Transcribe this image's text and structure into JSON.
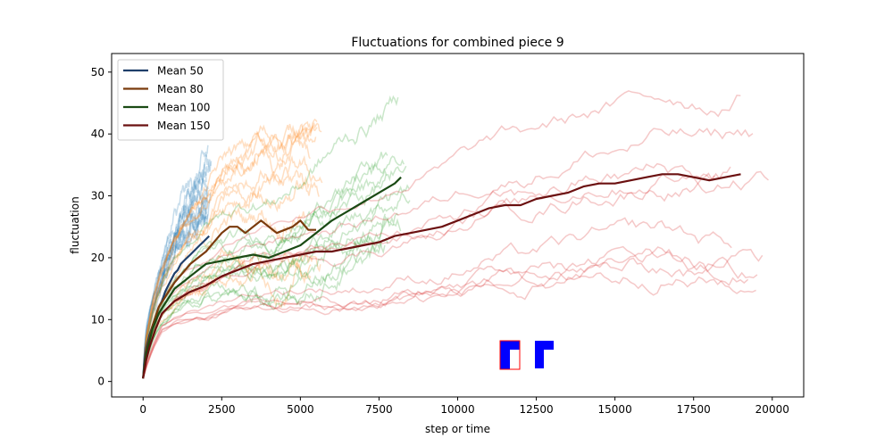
{
  "chart_data": {
    "type": "line",
    "title": "Fluctuations for combined piece 9",
    "xlabel": "step or time",
    "ylabel": "fluctuation",
    "xlim": [
      -1000,
      21000
    ],
    "ylim": [
      -2.5,
      53
    ],
    "xticks": [
      0,
      2500,
      5000,
      7500,
      10000,
      12500,
      15000,
      17500,
      20000
    ],
    "xtick_labels": [
      "0",
      "2500",
      "5000",
      "7500",
      "10000",
      "12500",
      "15000",
      "17500",
      "20000"
    ],
    "yticks": [
      0,
      10,
      20,
      30,
      40,
      50
    ],
    "ytick_labels": [
      "0",
      "10",
      "20",
      "30",
      "40",
      "50"
    ],
    "grid": false,
    "legend": "top-left",
    "series": [
      {
        "name": "Mean 50",
        "color": "#1f3f6a",
        "light_color": "#1f77b4",
        "x": [
          0,
          50,
          100,
          200,
          300,
          400,
          500,
          600,
          700,
          800,
          900,
          1000,
          1100,
          1200,
          1300,
          1400,
          1500,
          1600,
          1700,
          1800,
          1900,
          2000,
          2100
        ],
        "values": [
          0.5,
          3.5,
          5.5,
          7.5,
          9,
          10.5,
          12,
          13,
          14.5,
          15.5,
          16.5,
          17.5,
          18,
          19,
          19.5,
          20,
          20.5,
          21,
          21.5,
          22,
          22.5,
          23,
          23.5
        ],
        "runs": 12,
        "run_end_x": 2200,
        "run_end_range": [
          26,
          36
        ]
      },
      {
        "name": "Mean 80",
        "color": "#7a3a0c",
        "light_color": "#ff7f0e",
        "x": [
          0,
          100,
          300,
          500,
          750,
          1000,
          1250,
          1500,
          1750,
          2000,
          2250,
          2500,
          2750,
          3000,
          3250,
          3500,
          3750,
          4000,
          4250,
          4500,
          4750,
          5000,
          5250,
          5500
        ],
        "values": [
          0.5,
          5,
          9,
          12,
          14,
          16,
          17.5,
          19,
          20,
          21,
          22.5,
          24,
          25,
          25,
          24,
          25,
          26,
          25,
          24,
          24.5,
          25,
          26,
          24.5,
          24.5
        ],
        "runs": 12,
        "run_end_x": 5700,
        "run_end_range": [
          10,
          43
        ]
      },
      {
        "name": "Mean 100",
        "color": "#1a4a14",
        "light_color": "#2ca02c",
        "x": [
          0,
          100,
          300,
          500,
          750,
          1000,
          1250,
          1500,
          1750,
          2000,
          2500,
          3000,
          3500,
          4000,
          4500,
          5000,
          5500,
          6000,
          6500,
          7000,
          7500,
          8000,
          8200
        ],
        "values": [
          0.5,
          4.5,
          8.5,
          11,
          13,
          15,
          16,
          17,
          18,
          19,
          19.5,
          20,
          20.5,
          20,
          21,
          22,
          24,
          26,
          27.5,
          29,
          30.5,
          32,
          33
        ],
        "runs": 12,
        "run_end_x": 8500,
        "run_end_range": [
          20,
          47
        ]
      },
      {
        "name": "Mean 150",
        "color": "#6b1010",
        "light_color": "#d62728",
        "x": [
          0,
          100,
          200,
          400,
          600,
          1000,
          1500,
          2000,
          2500,
          3000,
          3500,
          4000,
          4500,
          5000,
          5500,
          6000,
          6500,
          7000,
          7500,
          8000,
          8500,
          9000,
          9500,
          10000,
          10500,
          11000,
          11500,
          12000,
          12500,
          13000,
          13500,
          14000,
          14500,
          15000,
          15500,
          16000,
          16500,
          17000,
          17500,
          18000,
          18500,
          19000
        ],
        "values": [
          0.5,
          3.5,
          5.5,
          8.5,
          11,
          13,
          14.5,
          15.5,
          17,
          18,
          19,
          19.5,
          20,
          20.5,
          21,
          21,
          21.5,
          22,
          22.5,
          23.5,
          24,
          24.5,
          25,
          26,
          27,
          28,
          28.5,
          28.5,
          29.5,
          30,
          30.5,
          31.5,
          32,
          32,
          32.5,
          33,
          33.5,
          33.5,
          33,
          32.5,
          33,
          33.5
        ],
        "runs": 10,
        "run_end_x": 20000,
        "run_end_range": [
          15,
          47
        ]
      }
    ]
  },
  "inset_glyphs": {
    "fill_color": "#0000ff",
    "outline_color": "#ff0000"
  }
}
